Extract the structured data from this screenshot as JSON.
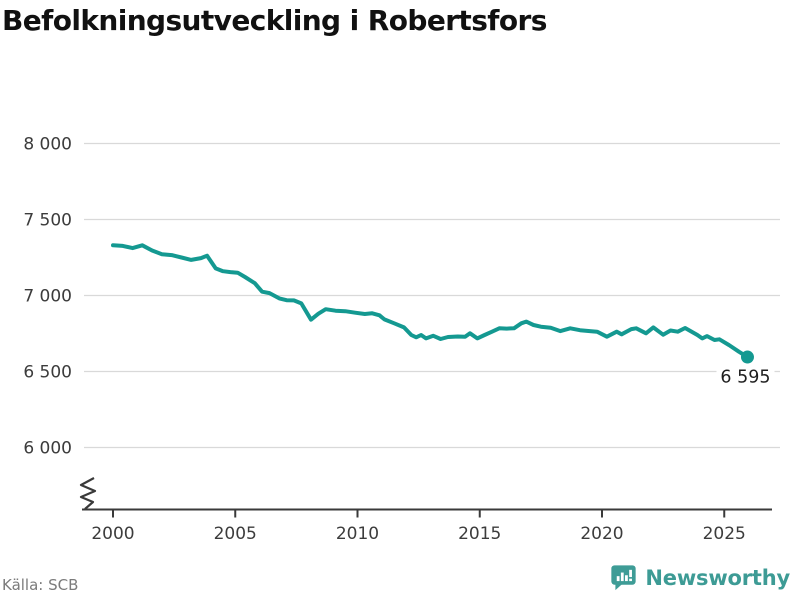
{
  "header": {
    "title": "Befolkningsutveckling i Robertsfors"
  },
  "chart_data": {
    "type": "line",
    "title": "Befolkningsutveckling i Robertsfors",
    "xlabel": "",
    "ylabel": "",
    "grid": "horizontal-only",
    "legend": "none",
    "axis_break_bottom_left": true,
    "ylim": [
      6000,
      8000
    ],
    "xlim": [
      2000,
      2026
    ],
    "y_ticks": [
      {
        "value": 8000,
        "label": "8 000"
      },
      {
        "value": 7500,
        "label": "7 500"
      },
      {
        "value": 7000,
        "label": "7 000"
      },
      {
        "value": 6500,
        "label": "6 500"
      },
      {
        "value": 6000,
        "label": "6 000"
      }
    ],
    "x_ticks": [
      {
        "value": 2000,
        "label": "2000"
      },
      {
        "value": 2005,
        "label": "2005"
      },
      {
        "value": 2010,
        "label": "2010"
      },
      {
        "value": 2015,
        "label": "2015"
      },
      {
        "value": 2020,
        "label": "2020"
      },
      {
        "value": 2025,
        "label": "2025"
      }
    ],
    "series": [
      {
        "name": "Befolkning",
        "color": "#149991",
        "points": [
          [
            2000.0,
            7330
          ],
          [
            2000.4,
            7326
          ],
          [
            2000.8,
            7312
          ],
          [
            2001.2,
            7330
          ],
          [
            2001.6,
            7296
          ],
          [
            2002.0,
            7272
          ],
          [
            2002.4,
            7266
          ],
          [
            2002.8,
            7250
          ],
          [
            2003.2,
            7234
          ],
          [
            2003.6,
            7246
          ],
          [
            2003.85,
            7262
          ],
          [
            2004.2,
            7178
          ],
          [
            2004.5,
            7160
          ],
          [
            2004.8,
            7154
          ],
          [
            2005.1,
            7150
          ],
          [
            2005.4,
            7122
          ],
          [
            2005.8,
            7081
          ],
          [
            2006.1,
            7025
          ],
          [
            2006.4,
            7016
          ],
          [
            2006.8,
            6981
          ],
          [
            2007.1,
            6969
          ],
          [
            2007.4,
            6968
          ],
          [
            2007.7,
            6948
          ],
          [
            2008.1,
            6841
          ],
          [
            2008.4,
            6880
          ],
          [
            2008.7,
            6910
          ],
          [
            2009.1,
            6900
          ],
          [
            2009.5,
            6897
          ],
          [
            2009.9,
            6887
          ],
          [
            2010.3,
            6878
          ],
          [
            2010.6,
            6883
          ],
          [
            2010.9,
            6870
          ],
          [
            2011.1,
            6843
          ],
          [
            2011.5,
            6817
          ],
          [
            2011.9,
            6790
          ],
          [
            2012.2,
            6740
          ],
          [
            2012.4,
            6725
          ],
          [
            2012.6,
            6740
          ],
          [
            2012.8,
            6718
          ],
          [
            2013.1,
            6735
          ],
          [
            2013.4,
            6714
          ],
          [
            2013.7,
            6727
          ],
          [
            2014.1,
            6730
          ],
          [
            2014.4,
            6728
          ],
          [
            2014.6,
            6751
          ],
          [
            2014.9,
            6718
          ],
          [
            2015.2,
            6740
          ],
          [
            2015.5,
            6762
          ],
          [
            2015.8,
            6784
          ],
          [
            2016.1,
            6782
          ],
          [
            2016.4,
            6784
          ],
          [
            2016.7,
            6817
          ],
          [
            2016.9,
            6828
          ],
          [
            2017.2,
            6806
          ],
          [
            2017.5,
            6795
          ],
          [
            2017.9,
            6788
          ],
          [
            2018.3,
            6766
          ],
          [
            2018.7,
            6784
          ],
          [
            2019.1,
            6772
          ],
          [
            2019.5,
            6766
          ],
          [
            2019.8,
            6762
          ],
          [
            2020.2,
            6729
          ],
          [
            2020.6,
            6762
          ],
          [
            2020.8,
            6745
          ],
          [
            2021.2,
            6779
          ],
          [
            2021.4,
            6784
          ],
          [
            2021.8,
            6751
          ],
          [
            2022.1,
            6790
          ],
          [
            2022.5,
            6742
          ],
          [
            2022.8,
            6770
          ],
          [
            2023.1,
            6762
          ],
          [
            2023.4,
            6786
          ],
          [
            2023.9,
            6740
          ],
          [
            2024.1,
            6718
          ],
          [
            2024.3,
            6733
          ],
          [
            2024.6,
            6707
          ],
          [
            2024.8,
            6712
          ],
          [
            2025.2,
            6674
          ],
          [
            2025.6,
            6630
          ],
          [
            2025.95,
            6595
          ]
        ]
      }
    ],
    "end_point": {
      "x": 2025.95,
      "value": 6595,
      "label": "6 595"
    }
  },
  "footer": {
    "source": "Källa: SCB",
    "brand": "Newsworthy"
  },
  "colors": {
    "accent": "#149991",
    "grid": "#d9d9d9",
    "axis": "#3a3a3a",
    "tick_text": "#3c3c3c",
    "end_label_text": "#1f1f1f",
    "title_text": "#111111",
    "source_text": "#7b7b7b",
    "brand_teal": "#3d9b95"
  }
}
